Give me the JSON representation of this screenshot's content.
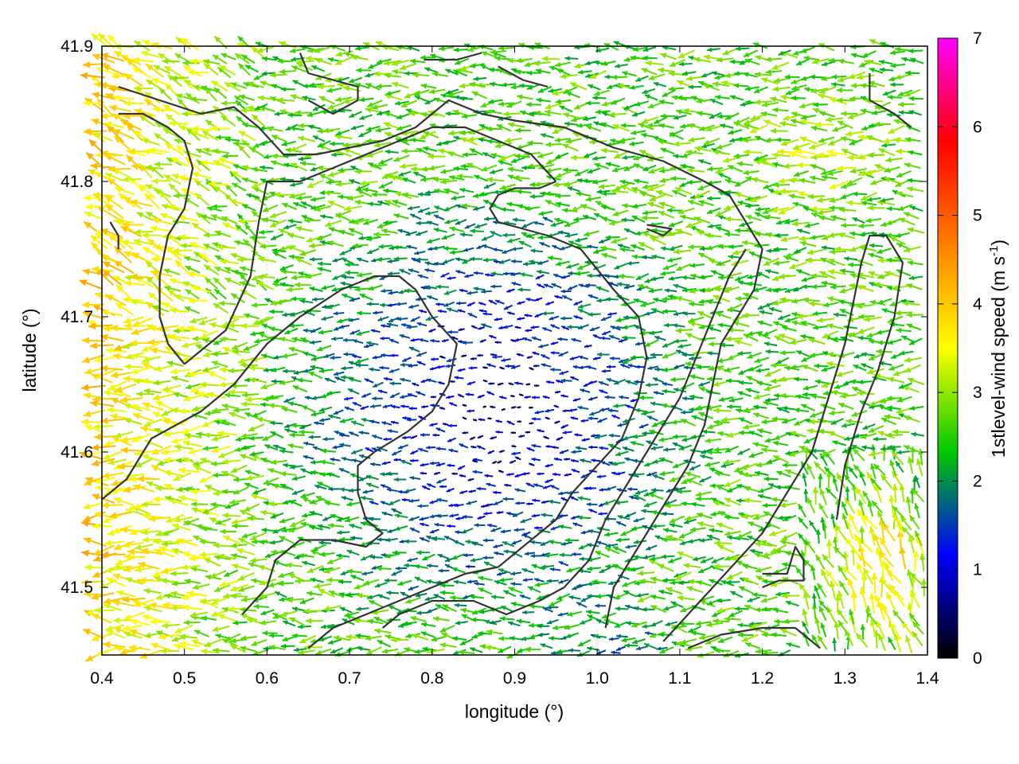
{
  "chart_data": {
    "type": "vector-field",
    "xlabel": "longitude (°)",
    "ylabel": "latitude (°)",
    "xlim": [
      0.4,
      1.4
    ],
    "ylim": [
      41.45,
      41.9
    ],
    "x_ticks": [
      "0.4",
      "0.5",
      "0.6",
      "0.7",
      "0.8",
      "0.9",
      "1.0",
      "1.1",
      "1.2",
      "1.3",
      "1.4"
    ],
    "y_ticks": [
      "41.5",
      "41.6",
      "41.7",
      "41.8",
      "41.9"
    ],
    "grid": true,
    "colorbar": {
      "label_prefix": "1stlevel-wind speed (m s",
      "label_sup": "-1",
      "label_suffix": ")",
      "range": [
        0,
        7
      ],
      "ticks": [
        "0",
        "1",
        "2",
        "3",
        "4",
        "5",
        "6",
        "7"
      ],
      "colors": [
        "#000000",
        "#0000ff",
        "#00c800",
        "#ffff00",
        "#ff8000",
        "#ff0000",
        "#ff00ff"
      ]
    },
    "field": {
      "description_grid_step_deg": 0.01,
      "dominant_direction": "easterly (vectors point west)",
      "calm_region_center": [
        0.9,
        41.6
      ],
      "high_speed_regions": [
        "west edge 0.4-0.6",
        "south-east 1.3-1.4, 41.45-41.6"
      ]
    },
    "contours": [
      [
        [
          0.42,
          41.87
        ],
        [
          0.47,
          41.86
        ],
        [
          0.52,
          41.85
        ],
        [
          0.56,
          41.855
        ],
        [
          0.59,
          41.84
        ],
        [
          0.62,
          41.82
        ],
        [
          0.66,
          41.82
        ],
        [
          0.7,
          41.825
        ],
        [
          0.74,
          41.83
        ],
        [
          0.78,
          41.84
        ],
        [
          0.82,
          41.86
        ],
        [
          0.86,
          41.85
        ],
        [
          0.9,
          41.845
        ],
        [
          0.96,
          41.84
        ],
        [
          1.02,
          41.825
        ],
        [
          1.08,
          41.815
        ],
        [
          1.13,
          41.8
        ],
        [
          1.16,
          41.79
        ],
        [
          1.18,
          41.77
        ],
        [
          1.2,
          41.75
        ],
        [
          1.19,
          41.72
        ],
        [
          1.17,
          41.7
        ],
        [
          1.15,
          41.68
        ],
        [
          1.14,
          41.65
        ],
        [
          1.13,
          41.62
        ],
        [
          1.11,
          41.59
        ],
        [
          1.08,
          41.56
        ],
        [
          1.05,
          41.53
        ],
        [
          1.02,
          41.5
        ],
        [
          1.01,
          41.47
        ]
      ],
      [
        [
          0.42,
          41.85
        ],
        [
          0.45,
          41.85
        ],
        [
          0.48,
          41.84
        ],
        [
          0.5,
          41.83
        ],
        [
          0.51,
          41.81
        ],
        [
          0.5,
          41.78
        ],
        [
          0.48,
          41.76
        ],
        [
          0.47,
          41.73
        ],
        [
          0.47,
          41.7
        ],
        [
          0.48,
          41.68
        ],
        [
          0.5,
          41.665
        ]
      ],
      [
        [
          0.5,
          41.665
        ],
        [
          0.52,
          41.675
        ],
        [
          0.55,
          41.69
        ],
        [
          0.58,
          41.73
        ],
        [
          0.59,
          41.77
        ],
        [
          0.6,
          41.8
        ],
        [
          0.64,
          41.8
        ],
        [
          0.68,
          41.81
        ],
        [
          0.72,
          41.82
        ],
        [
          0.76,
          41.83
        ],
        [
          0.8,
          41.84
        ],
        [
          0.84,
          41.84
        ],
        [
          0.88,
          41.83
        ],
        [
          0.92,
          41.82
        ],
        [
          0.95,
          41.8
        ]
      ],
      [
        [
          0.95,
          41.8
        ],
        [
          0.93,
          41.795
        ],
        [
          0.9,
          41.795
        ],
        [
          0.88,
          41.79
        ],
        [
          0.87,
          41.78
        ],
        [
          0.88,
          41.77
        ],
        [
          0.91,
          41.765
        ],
        [
          0.94,
          41.76
        ],
        [
          0.98,
          41.75
        ],
        [
          1.02,
          41.72
        ],
        [
          1.05,
          41.7
        ],
        [
          1.06,
          41.67
        ],
        [
          1.05,
          41.64
        ],
        [
          1.03,
          41.61
        ],
        [
          1.0,
          41.59
        ],
        [
          0.97,
          41.57
        ],
        [
          0.95,
          41.55
        ],
        [
          0.92,
          41.535
        ],
        [
          0.88,
          41.515
        ],
        [
          0.84,
          41.51
        ],
        [
          0.8,
          41.5
        ],
        [
          0.76,
          41.49
        ],
        [
          0.72,
          41.48
        ],
        [
          0.68,
          41.47
        ],
        [
          0.65,
          41.455
        ]
      ],
      [
        [
          0.4,
          41.565
        ],
        [
          0.43,
          41.58
        ],
        [
          0.46,
          41.61
        ],
        [
          0.49,
          41.62
        ],
        [
          0.52,
          41.63
        ],
        [
          0.56,
          41.65
        ],
        [
          0.6,
          41.68
        ],
        [
          0.64,
          41.7
        ],
        [
          0.69,
          41.72
        ],
        [
          0.73,
          41.73
        ],
        [
          0.76,
          41.73
        ],
        [
          0.78,
          41.72
        ],
        [
          0.8,
          41.7
        ],
        [
          0.83,
          41.68
        ],
        [
          0.82,
          41.65
        ],
        [
          0.8,
          41.63
        ],
        [
          0.77,
          41.615
        ],
        [
          0.73,
          41.6
        ],
        [
          0.71,
          41.59
        ],
        [
          0.71,
          41.57
        ],
        [
          0.72,
          41.55
        ],
        [
          0.74,
          41.54
        ],
        [
          0.72,
          41.53
        ],
        [
          0.68,
          41.535
        ],
        [
          0.64,
          41.535
        ],
        [
          0.61,
          41.52
        ],
        [
          0.6,
          41.5
        ],
        [
          0.57,
          41.48
        ]
      ],
      [
        [
          0.74,
          41.47
        ],
        [
          0.76,
          41.48
        ],
        [
          0.8,
          41.49
        ],
        [
          0.85,
          41.49
        ],
        [
          0.89,
          41.48
        ],
        [
          0.93,
          41.49
        ],
        [
          0.96,
          41.5
        ],
        [
          0.99,
          41.52
        ],
        [
          1.01,
          41.55
        ],
        [
          1.04,
          41.58
        ],
        [
          1.07,
          41.61
        ],
        [
          1.1,
          41.64
        ],
        [
          1.12,
          41.67
        ],
        [
          1.14,
          41.7
        ],
        [
          1.16,
          41.73
        ],
        [
          1.18,
          41.75
        ]
      ],
      [
        [
          1.11,
          41.455
        ],
        [
          1.15,
          41.465
        ],
        [
          1.2,
          41.47
        ],
        [
          1.24,
          41.47
        ],
        [
          1.27,
          41.455
        ]
      ],
      [
        [
          1.2,
          41.5
        ],
        [
          1.22,
          41.505
        ],
        [
          1.25,
          41.505
        ],
        [
          1.25,
          41.52
        ],
        [
          1.24,
          41.53
        ],
        [
          1.23,
          41.51
        ],
        [
          1.2,
          41.51
        ]
      ],
      [
        [
          1.29,
          41.55
        ],
        [
          1.3,
          41.59
        ],
        [
          1.32,
          41.63
        ],
        [
          1.34,
          41.66
        ],
        [
          1.36,
          41.7
        ],
        [
          1.37,
          41.74
        ],
        [
          1.35,
          41.76
        ],
        [
          1.33,
          41.76
        ],
        [
          1.32,
          41.74
        ],
        [
          1.31,
          41.71
        ],
        [
          1.3,
          41.68
        ],
        [
          1.28,
          41.64
        ],
        [
          1.26,
          41.6
        ],
        [
          1.24,
          41.58
        ],
        [
          1.22,
          41.56
        ],
        [
          1.2,
          41.54
        ],
        [
          1.17,
          41.52
        ],
        [
          1.14,
          41.5
        ],
        [
          1.11,
          41.48
        ],
        [
          1.08,
          41.46
        ]
      ],
      [
        [
          1.33,
          41.88
        ],
        [
          1.33,
          41.86
        ],
        [
          1.36,
          41.85
        ],
        [
          1.38,
          41.84
        ]
      ],
      [
        [
          0.64,
          41.895
        ],
        [
          0.65,
          41.88
        ],
        [
          0.68,
          41.875
        ],
        [
          0.71,
          41.87
        ],
        [
          0.71,
          41.86
        ],
        [
          0.68,
          41.85
        ],
        [
          0.65,
          41.86
        ]
      ],
      [
        [
          0.79,
          41.89
        ],
        [
          0.83,
          41.89
        ],
        [
          0.86,
          41.895
        ]
      ],
      [
        [
          0.88,
          41.885
        ],
        [
          0.91,
          41.875
        ],
        [
          0.94,
          41.87
        ]
      ],
      [
        [
          0.41,
          41.77
        ],
        [
          0.42,
          41.76
        ],
        [
          0.42,
          41.75
        ]
      ],
      [
        [
          1.06,
          41.765
        ],
        [
          1.08,
          41.76
        ],
        [
          1.09,
          41.765
        ],
        [
          1.06,
          41.768
        ]
      ]
    ]
  }
}
